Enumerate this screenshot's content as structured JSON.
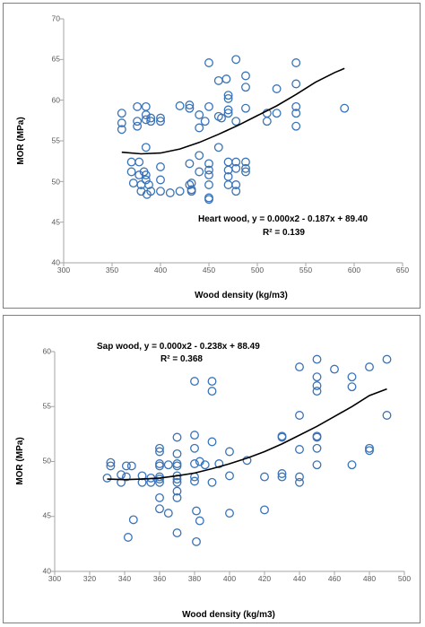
{
  "colors": {
    "marker": "#3a73b7",
    "trend": "#000000",
    "axis": "#a6a6a6"
  },
  "chart_data": [
    {
      "type": "scatter",
      "xlabel": "Wood density (kg/m3)",
      "ylabel": "MOR (MPa)",
      "xlim": [
        300,
        650
      ],
      "ylim": [
        40,
        70
      ],
      "xticks": [
        300,
        350,
        400,
        450,
        500,
        550,
        600,
        650
      ],
      "yticks": [
        40,
        45,
        50,
        55,
        60,
        65,
        70
      ],
      "annotations": [
        "Heart wood, y = 0.000x2 - 0.187x + 89.40",
        "R² = 0.139"
      ],
      "trendline": {
        "kind": "quadratic",
        "x": [
          360,
          380,
          400,
          420,
          440,
          460,
          480,
          500,
          520,
          540,
          560,
          580,
          590
        ],
        "y": [
          53.6,
          53.4,
          53.5,
          54.0,
          54.8,
          55.8,
          56.9,
          58.1,
          59.3,
          60.7,
          62.2,
          63.4,
          63.9
        ]
      },
      "points": [
        [
          360,
          58.4
        ],
        [
          360,
          57.2
        ],
        [
          360,
          56.4
        ],
        [
          370,
          52.4
        ],
        [
          370,
          51.2
        ],
        [
          372,
          49.8
        ],
        [
          376,
          59.2
        ],
        [
          376,
          57.4
        ],
        [
          376,
          56.8
        ],
        [
          378,
          52.4
        ],
        [
          378,
          50.8
        ],
        [
          380,
          49.6
        ],
        [
          380,
          48.8
        ],
        [
          383,
          51.2
        ],
        [
          385,
          59.2
        ],
        [
          385,
          58.2
        ],
        [
          385,
          57.6
        ],
        [
          385,
          54.2
        ],
        [
          385,
          50.8
        ],
        [
          385,
          50.2
        ],
        [
          386,
          48.4
        ],
        [
          388,
          49.6
        ],
        [
          390,
          57.8
        ],
        [
          390,
          57.4
        ],
        [
          390,
          48.8
        ],
        [
          400,
          57.8
        ],
        [
          400,
          57.4
        ],
        [
          400,
          51.8
        ],
        [
          400,
          50.2
        ],
        [
          400,
          48.8
        ],
        [
          410,
          48.6
        ],
        [
          420,
          59.3
        ],
        [
          420,
          48.8
        ],
        [
          430,
          59.4
        ],
        [
          430,
          59.0
        ],
        [
          430,
          52.2
        ],
        [
          430,
          49.6
        ],
        [
          432,
          49.8
        ],
        [
          432,
          49.0
        ],
        [
          432,
          48.8
        ],
        [
          440,
          58.2
        ],
        [
          440,
          56.6
        ],
        [
          440,
          53.2
        ],
        [
          440,
          51.2
        ],
        [
          446,
          57.4
        ],
        [
          450,
          64.6
        ],
        [
          450,
          59.2
        ],
        [
          450,
          52.2
        ],
        [
          450,
          51.4
        ],
        [
          450,
          50.8
        ],
        [
          450,
          49.6
        ],
        [
          450,
          48.0
        ],
        [
          450,
          47.8
        ],
        [
          460,
          62.4
        ],
        [
          460,
          58.0
        ],
        [
          460,
          54.2
        ],
        [
          463,
          57.8
        ],
        [
          468,
          62.6
        ],
        [
          470,
          60.6
        ],
        [
          470,
          60.2
        ],
        [
          470,
          58.8
        ],
        [
          470,
          58.4
        ],
        [
          470,
          52.4
        ],
        [
          470,
          51.4
        ],
        [
          470,
          50.6
        ],
        [
          470,
          49.6
        ],
        [
          478,
          65.0
        ],
        [
          478,
          57.4
        ],
        [
          478,
          52.4
        ],
        [
          478,
          51.6
        ],
        [
          478,
          49.6
        ],
        [
          478,
          48.8
        ],
        [
          488,
          63.0
        ],
        [
          488,
          61.6
        ],
        [
          488,
          52.4
        ],
        [
          488,
          51.6
        ],
        [
          488,
          51.2
        ],
        [
          488,
          59.0
        ],
        [
          510,
          58.4
        ],
        [
          510,
          57.4
        ],
        [
          520,
          61.4
        ],
        [
          520,
          58.4
        ],
        [
          540,
          64.6
        ],
        [
          540,
          62.0
        ],
        [
          540,
          59.2
        ],
        [
          540,
          58.4
        ],
        [
          540,
          56.8
        ],
        [
          590,
          59.0
        ]
      ]
    },
    {
      "type": "scatter",
      "xlabel": "Wood density (kg/m3)",
      "ylabel": "MOR (MPa)",
      "xlim": [
        300,
        500
      ],
      "ylim": [
        40,
        60
      ],
      "xticks": [
        300,
        320,
        340,
        360,
        380,
        400,
        420,
        440,
        460,
        480,
        500
      ],
      "yticks": [
        40,
        45,
        50,
        55,
        60
      ],
      "annotations": [
        "Sap wood, y = 0.000x2 - 0.238x + 88.49",
        "R² = 0.368"
      ],
      "trendline": {
        "kind": "quadratic",
        "x": [
          330,
          340,
          350,
          360,
          370,
          380,
          390,
          400,
          410,
          420,
          430,
          440,
          450,
          460,
          470,
          480,
          490
        ],
        "y": [
          48.4,
          48.35,
          48.4,
          48.5,
          48.7,
          48.95,
          49.35,
          49.8,
          50.3,
          50.9,
          51.6,
          52.4,
          53.2,
          54.1,
          55.0,
          56.0,
          56.6
        ]
      },
      "points": [
        [
          330,
          48.5
        ],
        [
          332,
          49.9
        ],
        [
          332,
          49.6
        ],
        [
          338,
          48.8
        ],
        [
          338,
          48.1
        ],
        [
          341,
          49.6
        ],
        [
          341,
          48.6
        ],
        [
          342,
          43.1
        ],
        [
          344,
          49.6
        ],
        [
          345,
          44.7
        ],
        [
          350,
          48.7
        ],
        [
          350,
          48.1
        ],
        [
          355,
          48.5
        ],
        [
          355,
          48.1
        ],
        [
          360,
          51.2
        ],
        [
          360,
          50.9
        ],
        [
          360,
          49.8
        ],
        [
          360,
          49.6
        ],
        [
          360,
          48.6
        ],
        [
          360,
          48.4
        ],
        [
          360,
          48.1
        ],
        [
          360,
          46.7
        ],
        [
          360,
          45.7
        ],
        [
          365,
          49.7
        ],
        [
          365,
          45.3
        ],
        [
          370,
          52.2
        ],
        [
          370,
          50.7
        ],
        [
          370,
          49.8
        ],
        [
          370,
          49.6
        ],
        [
          370,
          48.7
        ],
        [
          370,
          48.4
        ],
        [
          370,
          48.1
        ],
        [
          370,
          47.3
        ],
        [
          370,
          46.7
        ],
        [
          370,
          43.5
        ],
        [
          380,
          57.3
        ],
        [
          380,
          52.4
        ],
        [
          380,
          51.2
        ],
        [
          380,
          49.8
        ],
        [
          380,
          48.6
        ],
        [
          380,
          48.2
        ],
        [
          381,
          45.5
        ],
        [
          381,
          42.7
        ],
        [
          383,
          50.0
        ],
        [
          383,
          44.6
        ],
        [
          386,
          49.7
        ],
        [
          390,
          57.3
        ],
        [
          390,
          56.4
        ],
        [
          390,
          51.8
        ],
        [
          390,
          48.1
        ],
        [
          394,
          49.8
        ],
        [
          400,
          50.9
        ],
        [
          400,
          48.7
        ],
        [
          400,
          45.3
        ],
        [
          410,
          50.1
        ],
        [
          420,
          48.6
        ],
        [
          420,
          45.6
        ],
        [
          430,
          52.3
        ],
        [
          430,
          52.2
        ],
        [
          430,
          48.9
        ],
        [
          430,
          48.6
        ],
        [
          440,
          58.6
        ],
        [
          440,
          54.2
        ],
        [
          440,
          51.1
        ],
        [
          440,
          48.6
        ],
        [
          440,
          48.1
        ],
        [
          450,
          59.3
        ],
        [
          450,
          57.7
        ],
        [
          450,
          56.9
        ],
        [
          450,
          56.4
        ],
        [
          450,
          52.3
        ],
        [
          450,
          52.2
        ],
        [
          450,
          51.2
        ],
        [
          450,
          49.7
        ],
        [
          460,
          58.4
        ],
        [
          470,
          57.7
        ],
        [
          470,
          56.8
        ],
        [
          470,
          49.7
        ],
        [
          480,
          58.6
        ],
        [
          480,
          51.2
        ],
        [
          480,
          51.0
        ],
        [
          490,
          59.3
        ],
        [
          490,
          54.2
        ]
      ]
    }
  ]
}
